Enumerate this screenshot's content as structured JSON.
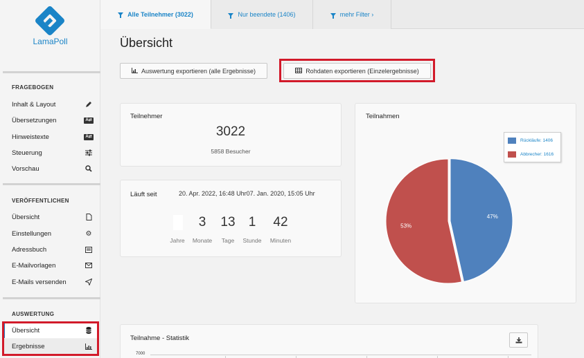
{
  "app": {
    "name": "LamaPoll",
    "brand_color": "#1a84c7",
    "highlight_color": "#d21a2a"
  },
  "sidebar": {
    "sections": [
      {
        "heading": "FRAGEBOGEN",
        "items": [
          {
            "label": "Inhalt & Layout",
            "icon": "pencil-icon"
          },
          {
            "label": "Übersetzungen",
            "icon": "translate-icon"
          },
          {
            "label": "Hinweistexte",
            "icon": "translate-icon"
          },
          {
            "label": "Steuerung",
            "icon": "sliders-icon"
          },
          {
            "label": "Vorschau",
            "icon": "search-icon"
          }
        ]
      },
      {
        "heading": "VERÖFFENTLICHEN",
        "items": [
          {
            "label": "Übersicht",
            "icon": "document-icon"
          },
          {
            "label": "Einstellungen",
            "icon": "gear-icon"
          },
          {
            "label": "Adressbuch",
            "icon": "address-book-icon"
          },
          {
            "label": "E-Mailvorlagen",
            "icon": "envelope-icon"
          },
          {
            "label": "E-Mails versenden",
            "icon": "paper-plane-icon"
          }
        ]
      },
      {
        "heading": "AUSWERTUNG",
        "items": [
          {
            "label": "Übersicht",
            "icon": "database-icon",
            "active": true
          },
          {
            "label": "Ergebnisse",
            "icon": "bar-chart-icon"
          }
        ]
      }
    ],
    "az_label": "A"
  },
  "tabs": [
    {
      "label": "Alle Teilnehmer (3022)",
      "active": true
    },
    {
      "label": "Nur beendete (1406)"
    },
    {
      "label": "mehr Filter ›"
    }
  ],
  "page": {
    "title": "Übersicht",
    "export_all_label": "Auswertung exportieren (alle Ergebnisse)",
    "export_raw_label": "Rohdaten exportieren (Einzelergebnisse)"
  },
  "participants": {
    "title": "Teilnehmer",
    "count": "3022",
    "visitors": "5858 Besucher"
  },
  "runtime": {
    "title": "Läuft seit",
    "dates": "20. Apr. 2022, 16:48 Uhr07. Jan. 2020, 15:05 Uhr",
    "countdown": [
      {
        "value": "",
        "label": "Jahre"
      },
      {
        "value": "3",
        "label": "Monate"
      },
      {
        "value": "13",
        "label": "Tage"
      },
      {
        "value": "1",
        "label": "Stunde"
      },
      {
        "value": "42",
        "label": "Minuten"
      }
    ]
  },
  "pie_panel": {
    "title": "Teilnahmen"
  },
  "chart_data": {
    "type": "pie",
    "title": "Teilnahmen",
    "series": [
      {
        "name": "Rückläufe: 1406",
        "value": 1406,
        "label": "47%",
        "color": "#4f81bd"
      },
      {
        "name": "Abbrecher: 1616",
        "value": 1616,
        "label": "53%",
        "color": "#c0504d"
      }
    ],
    "legend": "top-right"
  },
  "stats": {
    "title": "Teilnahme - Statistik",
    "y_top_label": "7000"
  }
}
